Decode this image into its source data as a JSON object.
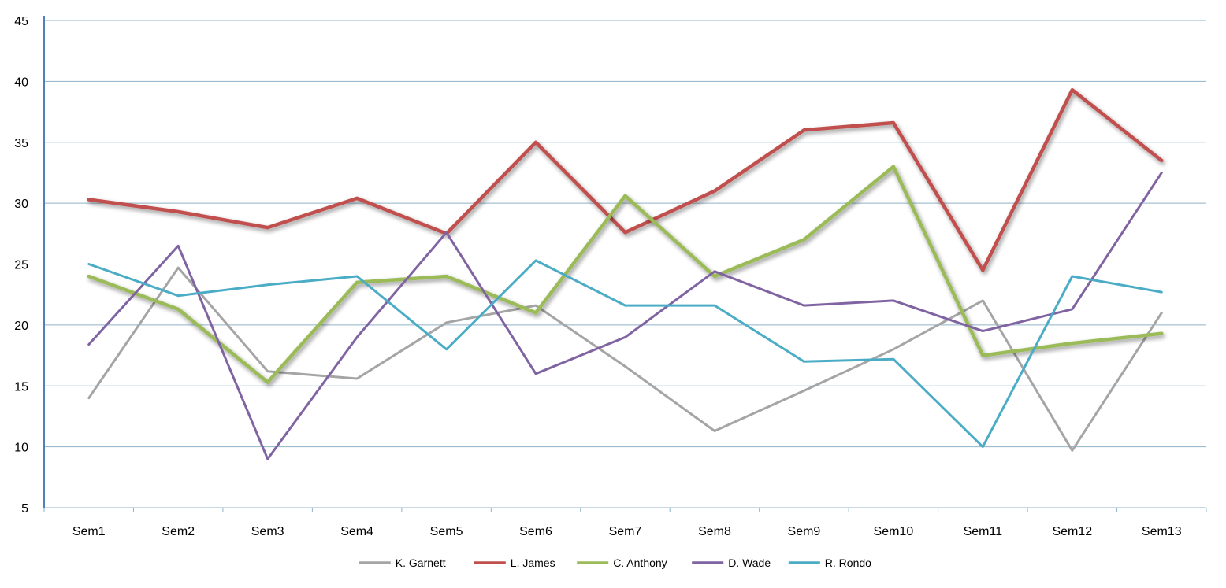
{
  "chart_data": {
    "type": "line",
    "title": "",
    "xlabel": "",
    "ylabel": "",
    "ylim": [
      5,
      45
    ],
    "yticks": [
      5,
      10,
      15,
      20,
      25,
      30,
      35,
      40,
      45
    ],
    "categories": [
      "Sem1",
      "Sem2",
      "Sem3",
      "Sem4",
      "Sem5",
      "Sem6",
      "Sem7",
      "Sem8",
      "Sem9",
      "Sem10",
      "Sem11",
      "Sem12",
      "Sem13"
    ],
    "grid": true,
    "legend_position": "bottom",
    "series": [
      {
        "name": "K. Garnett",
        "color": "#a5a5a5",
        "emphasis": false,
        "values": [
          14,
          24.7,
          16.2,
          15.6,
          20.2,
          21.6,
          16.6,
          11.3,
          14.6,
          18,
          22,
          9.7,
          21
        ]
      },
      {
        "name": "L. James",
        "color": "#c0504d",
        "emphasis": true,
        "values": [
          30.3,
          29.3,
          28,
          30.4,
          27.5,
          35,
          27.6,
          31,
          36,
          36.6,
          24.5,
          39.3,
          33.5
        ]
      },
      {
        "name": "C. Anthony",
        "color": "#9bbb59",
        "emphasis": true,
        "values": [
          24,
          21.3,
          15.3,
          23.5,
          24,
          21,
          30.6,
          24,
          27,
          33,
          17.5,
          18.5,
          19.3
        ]
      },
      {
        "name": "D. Wade",
        "color": "#8064a2",
        "emphasis": false,
        "values": [
          18.4,
          26.5,
          9,
          19,
          27.6,
          16,
          19,
          24.4,
          21.6,
          22,
          19.5,
          21.3,
          32.5
        ]
      },
      {
        "name": "R. Rondo",
        "color": "#4bacc6",
        "emphasis": false,
        "values": [
          25,
          22.4,
          23.3,
          24,
          18,
          25.3,
          21.6,
          21.6,
          17,
          17.2,
          10,
          24,
          22.7
        ]
      }
    ]
  }
}
